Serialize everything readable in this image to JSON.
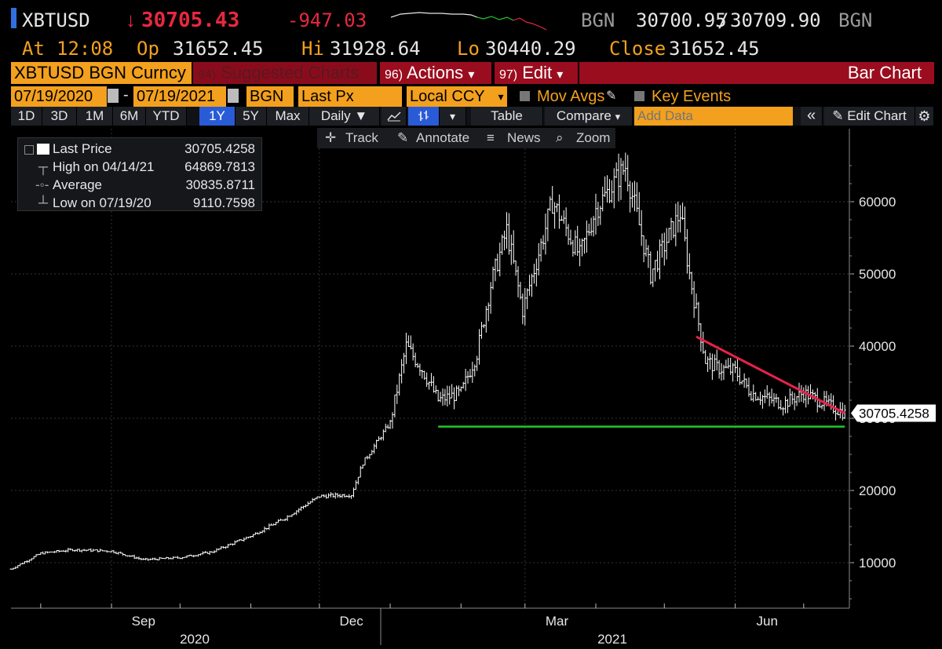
{
  "header": {
    "ticker": "XBTUSD",
    "change_arrow": "↓",
    "last_price": "30705.43",
    "net_change": "-947.03",
    "source_left": "BGN",
    "bid": "30700.95",
    "bid_ask_sep": "/",
    "ask": "30709.90",
    "source_right": "BGN",
    "at_label": "At",
    "at_time": "12:08",
    "op_label": "Op",
    "open": "31652.45",
    "hi_label": "Hi",
    "high": "31928.64",
    "lo_label": "Lo",
    "low": "30440.29",
    "close_label": "Close",
    "close": "31652.45"
  },
  "security_bar": {
    "security": "XBTUSD BGN Curncy",
    "suggested_num": "94)",
    "suggested": "Suggested Charts",
    "actions_num": "96)",
    "actions": "Actions",
    "edit_num": "97)",
    "edit": "Edit",
    "dropdown_glyph": "▾",
    "title": "Bar Chart"
  },
  "settings": {
    "start_date": "07/19/2020",
    "date_sep": "-",
    "end_date": "07/19/2021",
    "source": "BGN",
    "field": "Last Px",
    "currency": "Local CCY",
    "mov_avgs": "Mov Avgs",
    "key_events": "Key Events"
  },
  "toolbar": {
    "periods": [
      "1D",
      "3D",
      "1M",
      "6M",
      "YTD",
      "1Y",
      "5Y",
      "Max"
    ],
    "selected_period": "1Y",
    "frequency": "Daily ▼",
    "table": "Table",
    "compare": "Compare",
    "compare_arrow": "▾",
    "add_data_placeholder": "Add Data",
    "collapse": "«",
    "edit_chart": "Edit Chart"
  },
  "subbar": {
    "track": "Track",
    "annotate": "Annotate",
    "news": "News",
    "zoom": "Zoom"
  },
  "legend": {
    "rows": [
      {
        "label": "Last Price",
        "value": "30705.4258"
      },
      {
        "label": "High on 04/14/21",
        "value": "64869.7813"
      },
      {
        "label": "Average",
        "value": "30835.8711"
      },
      {
        "label": "Low on 07/19/20",
        "value": "9110.7598"
      }
    ]
  },
  "colors": {
    "background": "#000000",
    "price_down": "#e8283f",
    "header_orange": "#f2a01e",
    "actions_red": "#9a0d1f",
    "selected_blue": "#2a5bd7",
    "bars": "#ffffff",
    "support_line": "#22c72a",
    "resistance_line": "#e8224a"
  },
  "chart_data": {
    "type": "bar",
    "series": [
      {
        "name": "Last Price",
        "x": [
          "2020-07-19",
          "2020-08-01",
          "2020-08-15",
          "2020-09-01",
          "2020-09-15",
          "2020-10-01",
          "2020-10-15",
          "2020-11-01",
          "2020-11-15",
          "2020-12-01",
          "2020-12-15",
          "2020-12-20",
          "2021-01-01",
          "2021-01-08",
          "2021-01-15",
          "2021-01-22",
          "2021-02-01",
          "2021-02-08",
          "2021-02-14",
          "2021-02-21",
          "2021-02-28",
          "2021-03-08",
          "2021-03-13",
          "2021-03-25",
          "2021-04-01",
          "2021-04-14",
          "2021-04-25",
          "2021-05-08",
          "2021-05-12",
          "2021-05-19",
          "2021-05-24",
          "2021-06-01",
          "2021-06-08",
          "2021-06-22",
          "2021-07-01",
          "2021-07-19"
        ],
        "values": [
          9110,
          11300,
          11800,
          11600,
          10400,
          10700,
          11500,
          13700,
          16000,
          19200,
          19400,
          23800,
          29400,
          40000,
          36800,
          32500,
          33500,
          39000,
          48500,
          56000,
          45000,
          54000,
          60000,
          52500,
          59000,
          64870,
          50000,
          58500,
          50000,
          38000,
          37000,
          36500,
          33500,
          32000,
          33500,
          30705
        ]
      },
      {
        "name": "Support",
        "x": [
          "2021-01-22",
          "2021-07-19"
        ],
        "values": [
          28850,
          28850
        ]
      },
      {
        "name": "Resistance",
        "x": [
          "2021-05-15",
          "2021-07-19"
        ],
        "values": [
          41300,
          30705
        ]
      }
    ],
    "ylim": [
      4000,
      70000
    ],
    "yticks": [
      10000,
      20000,
      30000,
      40000,
      50000,
      60000
    ],
    "ytick_labels": [
      "10000",
      "20000",
      "30000",
      "40000",
      "50000",
      "60000"
    ],
    "xtick_labels": [
      "Sep",
      "Dec",
      "Mar",
      "Jun"
    ],
    "year_labels": [
      "2020",
      "2021"
    ],
    "last_value_label": "30705.4258",
    "grid": true,
    "legend_position": "top-left"
  }
}
